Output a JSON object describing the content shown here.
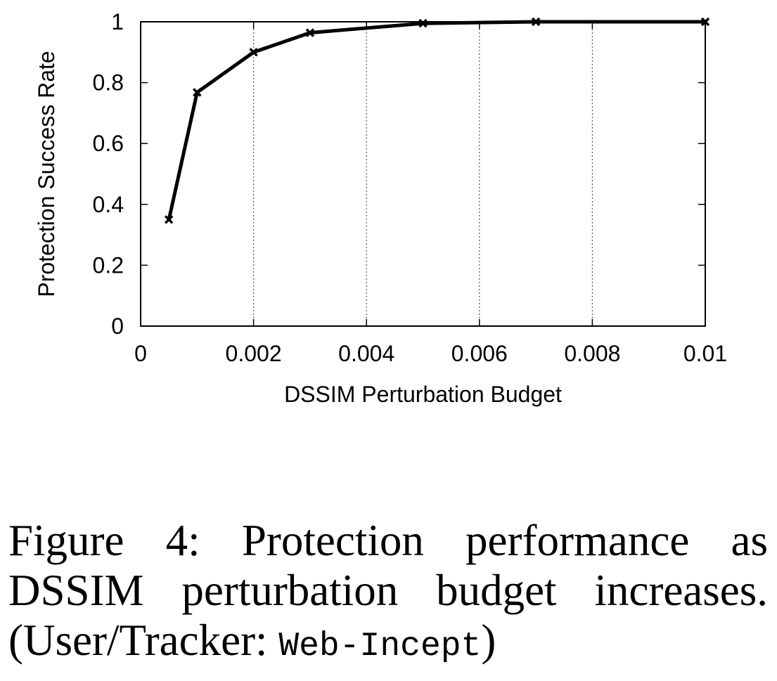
{
  "chart_data": {
    "type": "line",
    "xlabel": "DSSIM Perturbation Budget",
    "ylabel": "Protection Success Rate",
    "xlim": [
      0,
      0.01
    ],
    "ylim": [
      0,
      1
    ],
    "x_ticks": [
      "0",
      "0.002",
      "0.004",
      "0.006",
      "0.008",
      "0.01"
    ],
    "x_tick_values": [
      0,
      0.002,
      0.004,
      0.006,
      0.008,
      0.01
    ],
    "y_ticks": [
      "0",
      "0.2",
      "0.4",
      "0.6",
      "0.8",
      "1"
    ],
    "y_tick_values": [
      0,
      0.2,
      0.4,
      0.6,
      0.8,
      1
    ],
    "grid": "vertical dotted",
    "series": [
      {
        "x": [
          0.0005,
          0.001,
          0.002,
          0.003,
          0.005,
          0.007,
          0.01
        ],
        "y": [
          0.35,
          0.768,
          0.9,
          0.964,
          0.995,
          1.0,
          1.0
        ],
        "color": "#000000",
        "marker": "x"
      }
    ]
  },
  "caption": {
    "text": "Figure 4: Protection performance as DSSIM perturbation budget increases. (User/Tracker: ",
    "code": "Web-Incept",
    "close": ")"
  }
}
